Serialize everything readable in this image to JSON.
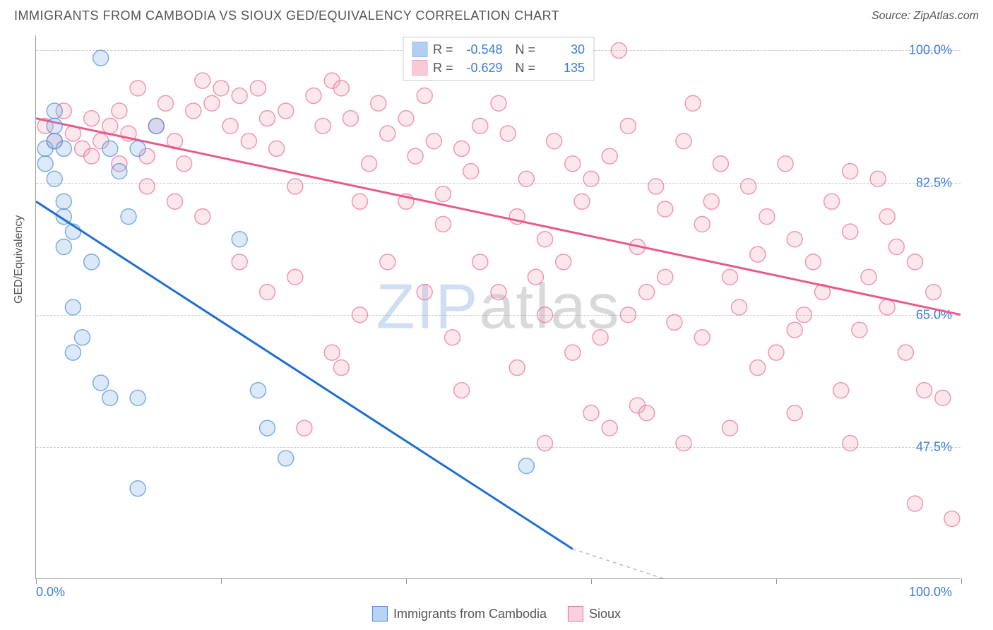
{
  "header": {
    "title": "IMMIGRANTS FROM CAMBODIA VS SIOUX GED/EQUIVALENCY CORRELATION CHART",
    "source": "Source: ZipAtlas.com"
  },
  "axes": {
    "ylabel": "GED/Equivalency",
    "xlim": [
      0,
      100
    ],
    "ylim": [
      30,
      102
    ],
    "x_ticks": [
      0,
      20,
      40,
      60,
      80,
      100
    ],
    "x_tick_labels": {
      "0": "0.0%",
      "100": "100.0%"
    },
    "y_grid": [
      47.5,
      65.0,
      82.5,
      100.0
    ],
    "y_grid_labels": [
      "47.5%",
      "65.0%",
      "82.5%",
      "100.0%"
    ]
  },
  "style": {
    "background": "#ffffff",
    "grid_color": "#cccccc",
    "axis_color": "#999999",
    "tick_label_color": "#3b7dd8",
    "title_color": "#555555",
    "title_fontsize": 18,
    "label_fontsize": 16,
    "tick_fontsize": 18,
    "marker_radius": 11,
    "marker_fill_opacity": 0.28,
    "marker_stroke_width": 1.5,
    "line_width": 3
  },
  "series": [
    {
      "id": "cambodia",
      "name": "Immigrants from Cambodia",
      "color_fill": "#7fb0ea",
      "color_stroke": "#4f8fd9",
      "line_color": "#1f6fd0",
      "R": "-0.548",
      "N": "30",
      "trend": {
        "x1": 0,
        "y1": 80,
        "x2": 58,
        "y2": 34
      },
      "trend_ext": {
        "x1": 58,
        "y1": 34,
        "x2": 68,
        "y2": 30
      },
      "points": [
        [
          1,
          87
        ],
        [
          1,
          85
        ],
        [
          2,
          90
        ],
        [
          2,
          88
        ],
        [
          2,
          83
        ],
        [
          3,
          87
        ],
        [
          3,
          80
        ],
        [
          3,
          78
        ],
        [
          4,
          76
        ],
        [
          7,
          99
        ],
        [
          8,
          87
        ],
        [
          11,
          87
        ],
        [
          13,
          90
        ],
        [
          4,
          66
        ],
        [
          7,
          56
        ],
        [
          8,
          54
        ],
        [
          11,
          54
        ],
        [
          4,
          60
        ],
        [
          22,
          75
        ],
        [
          24,
          55
        ],
        [
          25,
          50
        ],
        [
          27,
          46
        ],
        [
          11,
          42
        ],
        [
          5,
          62
        ],
        [
          53,
          45
        ],
        [
          6,
          72
        ],
        [
          2,
          92
        ],
        [
          9,
          84
        ],
        [
          10,
          78
        ],
        [
          3,
          74
        ]
      ]
    },
    {
      "id": "sioux",
      "name": "Sioux",
      "color_fill": "#f6a8bc",
      "color_stroke": "#e77095",
      "line_color": "#e85a8a",
      "R": "-0.629",
      "N": "135",
      "trend": {
        "x1": 0,
        "y1": 91,
        "x2": 100,
        "y2": 65
      },
      "points": [
        [
          1,
          90
        ],
        [
          2,
          88
        ],
        [
          3,
          92
        ],
        [
          4,
          89
        ],
        [
          5,
          87
        ],
        [
          6,
          91
        ],
        [
          7,
          88
        ],
        [
          8,
          90
        ],
        [
          9,
          92
        ],
        [
          10,
          89
        ],
        [
          11,
          95
        ],
        [
          12,
          86
        ],
        [
          13,
          90
        ],
        [
          14,
          93
        ],
        [
          15,
          88
        ],
        [
          16,
          85
        ],
        [
          17,
          92
        ],
        [
          18,
          96
        ],
        [
          19,
          93
        ],
        [
          20,
          95
        ],
        [
          21,
          90
        ],
        [
          22,
          94
        ],
        [
          23,
          88
        ],
        [
          24,
          95
        ],
        [
          25,
          91
        ],
        [
          26,
          87
        ],
        [
          27,
          92
        ],
        [
          28,
          82
        ],
        [
          30,
          94
        ],
        [
          31,
          90
        ],
        [
          32,
          96
        ],
        [
          33,
          95
        ],
        [
          34,
          91
        ],
        [
          35,
          80
        ],
        [
          36,
          85
        ],
        [
          37,
          93
        ],
        [
          38,
          89
        ],
        [
          33,
          58
        ],
        [
          40,
          91
        ],
        [
          41,
          86
        ],
        [
          42,
          94
        ],
        [
          43,
          88
        ],
        [
          44,
          81
        ],
        [
          29,
          50
        ],
        [
          46,
          87
        ],
        [
          47,
          84
        ],
        [
          48,
          90
        ],
        [
          50,
          93
        ],
        [
          51,
          89
        ],
        [
          52,
          78
        ],
        [
          53,
          83
        ],
        [
          54,
          70
        ],
        [
          55,
          75
        ],
        [
          56,
          88
        ],
        [
          57,
          72
        ],
        [
          58,
          85
        ],
        [
          59,
          80
        ],
        [
          60,
          83
        ],
        [
          61,
          62
        ],
        [
          62,
          86
        ],
        [
          63,
          100
        ],
        [
          64,
          90
        ],
        [
          65,
          74
        ],
        [
          66,
          68
        ],
        [
          67,
          82
        ],
        [
          68,
          79
        ],
        [
          69,
          64
        ],
        [
          70,
          88
        ],
        [
          71,
          93
        ],
        [
          72,
          77
        ],
        [
          73,
          80
        ],
        [
          74,
          85
        ],
        [
          75,
          70
        ],
        [
          76,
          66
        ],
        [
          77,
          82
        ],
        [
          78,
          73
        ],
        [
          79,
          78
        ],
        [
          80,
          60
        ],
        [
          81,
          85
        ],
        [
          82,
          75
        ],
        [
          83,
          65
        ],
        [
          84,
          72
        ],
        [
          85,
          68
        ],
        [
          86,
          80
        ],
        [
          87,
          55
        ],
        [
          88,
          76
        ],
        [
          89,
          63
        ],
        [
          90,
          70
        ],
        [
          91,
          83
        ],
        [
          92,
          66
        ],
        [
          93,
          74
        ],
        [
          94,
          60
        ],
        [
          95,
          72
        ],
        [
          96,
          55
        ],
        [
          97,
          68
        ],
        [
          98,
          54
        ],
        [
          99,
          38
        ],
        [
          95,
          40
        ],
        [
          88,
          48
        ],
        [
          82,
          52
        ],
        [
          75,
          50
        ],
        [
          70,
          48
        ],
        [
          65,
          53
        ],
        [
          60,
          52
        ],
        [
          55,
          48
        ],
        [
          45,
          62
        ],
        [
          42,
          68
        ],
        [
          38,
          72
        ],
        [
          35,
          65
        ],
        [
          32,
          60
        ],
        [
          28,
          70
        ],
        [
          25,
          68
        ],
        [
          22,
          72
        ],
        [
          18,
          78
        ],
        [
          15,
          80
        ],
        [
          12,
          82
        ],
        [
          9,
          85
        ],
        [
          6,
          86
        ],
        [
          50,
          68
        ],
        [
          55,
          65
        ],
        [
          48,
          72
        ],
        [
          44,
          77
        ],
        [
          40,
          80
        ],
        [
          88,
          84
        ],
        [
          92,
          78
        ],
        [
          82,
          63
        ],
        [
          78,
          58
        ],
        [
          72,
          62
        ],
        [
          68,
          70
        ],
        [
          64,
          65
        ],
        [
          58,
          60
        ],
        [
          52,
          58
        ],
        [
          46,
          55
        ],
        [
          62,
          50
        ],
        [
          66,
          52
        ]
      ]
    }
  ],
  "legend_bottom": [
    {
      "swatch_fill": "#b8d3f5",
      "swatch_stroke": "#4f8fd9",
      "label": "Immigrants from Cambodia"
    },
    {
      "swatch_fill": "#fbd0dc",
      "swatch_stroke": "#e77095",
      "label": "Sioux"
    }
  ],
  "watermark": {
    "part1": "ZIP",
    "part2": "atlas"
  }
}
